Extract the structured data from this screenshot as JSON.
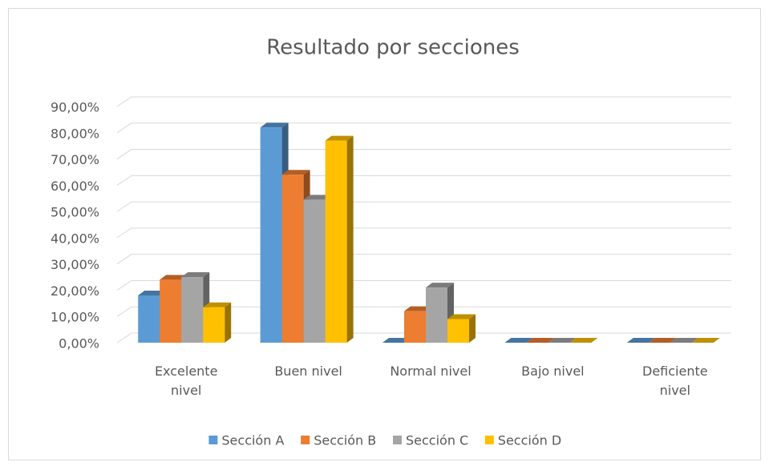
{
  "chart_data": {
    "type": "bar3d",
    "title": "Resultado por secciones",
    "categories": [
      "Excelente nivel",
      "Buen nivel",
      "Normal nivel",
      "Bajo nivel",
      "Deficiente nivel"
    ],
    "series": [
      {
        "name": "Sección A",
        "color": "#5b9bd5",
        "values": [
          18,
          82,
          0,
          0,
          0
        ]
      },
      {
        "name": "Sección B",
        "color": "#ed7d31",
        "values": [
          24,
          64,
          12,
          0,
          0
        ]
      },
      {
        "name": "Sección C",
        "color": "#a5a5a5",
        "values": [
          25,
          54.5,
          21,
          0,
          0
        ]
      },
      {
        "name": "Sección D",
        "color": "#ffc000",
        "values": [
          13.5,
          77,
          9,
          0,
          0
        ]
      }
    ],
    "ylim": [
      0,
      90
    ],
    "yticks": [
      {
        "value": 0,
        "label": "0,00%"
      },
      {
        "value": 10,
        "label": "10,00%"
      },
      {
        "value": 20,
        "label": "20,00%"
      },
      {
        "value": 30,
        "label": "30,00%"
      },
      {
        "value": 40,
        "label": "40,00%"
      },
      {
        "value": 50,
        "label": "50,00%"
      },
      {
        "value": 60,
        "label": "60,00%"
      },
      {
        "value": 70,
        "label": "70,00%"
      },
      {
        "value": 80,
        "label": "80,00%"
      },
      {
        "value": 90,
        "label": "90,00%"
      }
    ],
    "grid": true,
    "legend": "bottom"
  }
}
